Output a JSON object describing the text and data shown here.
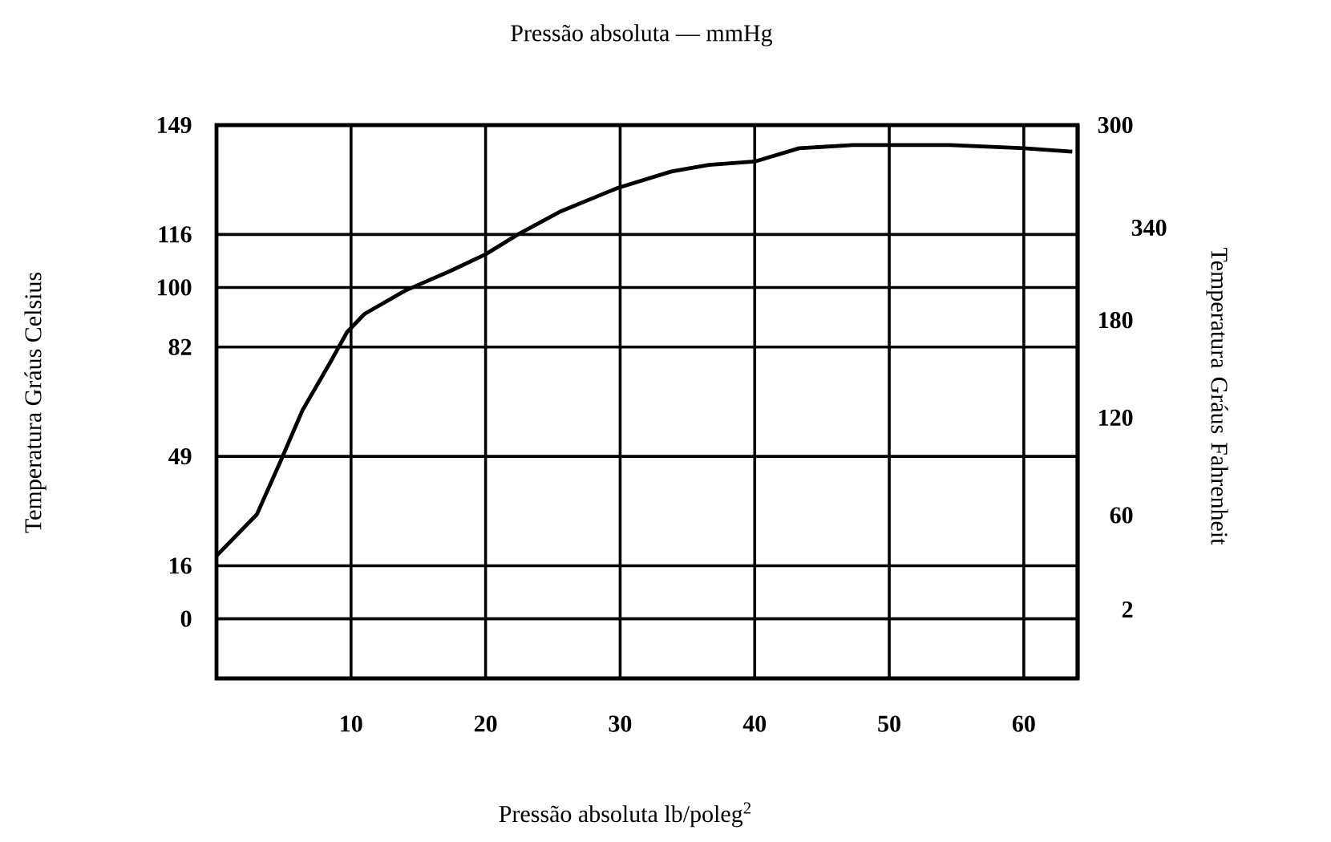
{
  "chart_data": {
    "type": "line",
    "x2label": "Pressão absoluta — mmHg",
    "xlabel": "Pressão absoluta lb/poleg$^{2}$",
    "ylabel": "Temperatura Gráus Celsius",
    "y2label": "Temperatura Gráus Fahrenheit",
    "xlim": [
      0,
      64
    ],
    "xticks": [
      10,
      20,
      30,
      40,
      50,
      60
    ],
    "ylim": [
      -18,
      149
    ],
    "yticks": [
      0,
      16,
      49,
      82,
      100,
      116,
      149
    ],
    "y2lim": [
      -40.4,
      300
    ],
    "y2ticks": [
      2,
      60,
      120,
      180,
      300
    ],
    "grid": true,
    "annotations": [
      "340"
    ],
    "series": [
      {
        "color": "#000000",
        "x": [
          0,
          3,
          4.7,
          6.4,
          8.4,
          9.7,
          11,
          14,
          17.4,
          20,
          22.4,
          25.6,
          29.8,
          33.8,
          36.6,
          40,
          43.3,
          47.3,
          50,
          54.5,
          60,
          63.6
        ],
        "values": [
          19,
          31.5,
          47,
          63,
          77,
          86.5,
          92,
          99,
          105,
          110,
          116,
          123,
          130,
          135,
          137,
          138,
          142,
          143,
          143,
          143,
          142,
          141
        ]
      }
    ]
  }
}
